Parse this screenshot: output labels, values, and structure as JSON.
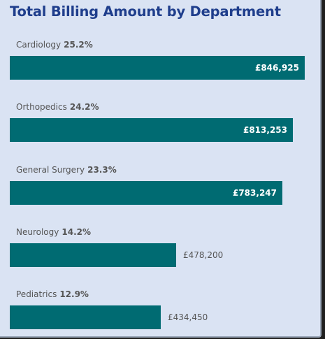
{
  "chart_data": {
    "type": "bar",
    "orientation": "horizontal",
    "title": "Total Billing Amount by Department",
    "categories": [
      "Cardiology",
      "Orthopedics",
      "General Surgery",
      "Neurology",
      "Pediatrics"
    ],
    "values": [
      846925,
      813253,
      783247,
      478200,
      434450
    ],
    "value_labels": [
      "£846,925",
      "£813,253",
      "£783,247",
      "£478,200",
      "£434,450"
    ],
    "percent_labels": [
      "25.2%",
      "24.2%",
      "23.3%",
      "14.2%",
      "12.9%"
    ],
    "xlim": [
      0,
      846925
    ],
    "grid": false,
    "legend": "none",
    "bar_color": "#006b72",
    "title_color": "#1f3e8c",
    "background_color": "#dae3f3"
  }
}
